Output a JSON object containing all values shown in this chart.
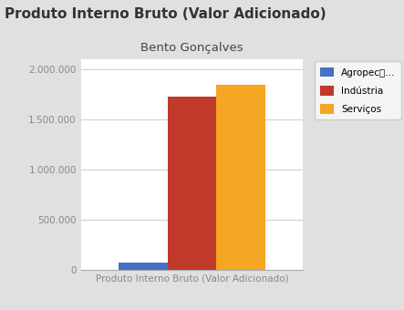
{
  "title": "Produto Interno Bruto (Valor Adicionado)",
  "subtitle": "Bento Gonçalves",
  "xlabel": "Produto Interno Bruto (Valor Adicionado)",
  "series": [
    {
      "label": "Agropecু...",
      "value": 75000,
      "color": "#4472c4"
    },
    {
      "label": "Indústria",
      "value": 1720000,
      "color": "#c0392b"
    },
    {
      "label": "Serviços",
      "value": 1840000,
      "color": "#f5a623"
    }
  ],
  "ylim": [
    0,
    2100000
  ],
  "yticks": [
    0,
    500000,
    1000000,
    1500000,
    2000000
  ],
  "ytick_labels": [
    "0",
    "500.000",
    "1.000.000",
    "1.500.000",
    "2.000.000"
  ],
  "title_fontsize": 11,
  "subtitle_fontsize": 9.5,
  "xlabel_fontsize": 7.5,
  "ytick_fontsize": 7.5,
  "bg_color_outer": "#e0e0e0",
  "bg_color_inner": "#ffffff",
  "bar_width": 0.22,
  "title_color": "#333333",
  "subtitle_color": "#444444",
  "grid_color": "#cccccc",
  "tick_color": "#888888"
}
